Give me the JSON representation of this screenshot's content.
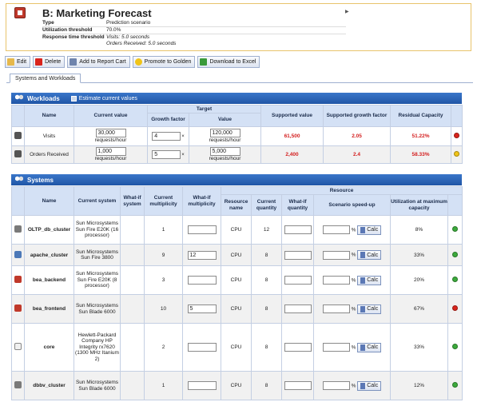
{
  "header": {
    "title": "B: Marketing Forecast",
    "collapse_icon": "triangle-right",
    "meta": [
      {
        "label": "Type",
        "value": "Prediction scenario"
      },
      {
        "label": "Utilization threshold",
        "value": "70.0%"
      },
      {
        "label": "Response time threshold",
        "value_1": "Visits: 5.0 seconds",
        "value_2": "Orders Received: 5.0 seconds"
      }
    ]
  },
  "toolbar": {
    "edit": "Edit",
    "delete": "Delete",
    "add_report": "Add to Report Cart",
    "promote": "Promote to Golden",
    "download": "Download to Excel"
  },
  "tabs": [
    "Systems and Workloads"
  ],
  "workloads": {
    "title": "Workloads",
    "estimate_label": "Estimate current values",
    "headers": {
      "name": "Name",
      "current_value": "Current value",
      "target": "Target",
      "growth_factor": "Growth factor",
      "value": "Value",
      "supported_value": "Supported value",
      "supported_growth": "Supported growth factor",
      "residual": "Residual Capacity"
    },
    "rows": [
      {
        "name": "Visits",
        "current_value": "30,000",
        "current_unit": "requests/hour",
        "growth": "4",
        "target_value": "120,000",
        "target_unit": "requests/hour",
        "supported_value": "61,500",
        "supported_growth": "2.05",
        "residual": "51.22%",
        "status_color": "#d9241c"
      },
      {
        "name": "Orders Received",
        "current_value": "1,000",
        "current_unit": "requests/hour",
        "growth": "5",
        "target_value": "5,000",
        "target_unit": "requests/hour",
        "supported_value": "2,400",
        "supported_growth": "2.4",
        "residual": "58.33%",
        "status_color": "#f0c419"
      }
    ]
  },
  "systems": {
    "title": "Systems",
    "headers": {
      "name": "Name",
      "current_system": "Current system",
      "whatif_system": "What-if system",
      "current_multiplicity": "Current multiplicity",
      "whatif_multiplicity": "What-if multiplicity",
      "resource": "Resource",
      "resource_name": "Resource name",
      "current_quantity": "Current quantity",
      "whatif_quantity": "What-if quantity",
      "scenario_speedup": "Scenario speed-up",
      "utilization": "Utilization at maximum capacity"
    },
    "calc_label": "Calc",
    "percent": "%",
    "rows": [
      {
        "name": "OLTP_db_cluster",
        "system": "Sun Microsystems Sun Fire E20K (16 processor)",
        "multiplicity": "1",
        "whatif_mult": "",
        "resource": "CPU",
        "quantity": "12",
        "utilization": "8%",
        "status_color": "#3caa3c"
      },
      {
        "name": "apache_cluster",
        "system": "Sun Microsystems Sun Fire 3800",
        "multiplicity": "9",
        "whatif_mult": "12",
        "resource": "CPU",
        "quantity": "8",
        "utilization": "33%",
        "status_color": "#3caa3c"
      },
      {
        "name": "bea_backend",
        "system": "Sun Microsystems Sun Fire E20K (8 processor)",
        "multiplicity": "3",
        "whatif_mult": "",
        "resource": "CPU",
        "quantity": "8",
        "utilization": "20%",
        "status_color": "#3caa3c"
      },
      {
        "name": "bea_frontend",
        "system": "Sun Microsystems Sun Blade 6000",
        "multiplicity": "10",
        "whatif_mult": "5",
        "resource": "CPU",
        "quantity": "8",
        "utilization": "67%",
        "status_color": "#d9241c"
      },
      {
        "name": "core",
        "system": "Hewlett-Packard Company HP Integrity rx7620 (1300 MHz Itanium 2)",
        "multiplicity": "2",
        "whatif_mult": "",
        "resource": "CPU",
        "quantity": "8",
        "utilization": "33%",
        "status_color": "#3caa3c"
      },
      {
        "name": "dbbv_cluster",
        "system": "Sun Microsystems Sun Blade 6000",
        "multiplicity": "1",
        "whatif_mult": "",
        "resource": "CPU",
        "quantity": "8",
        "utilization": "12%",
        "status_color": "#3caa3c"
      }
    ]
  }
}
